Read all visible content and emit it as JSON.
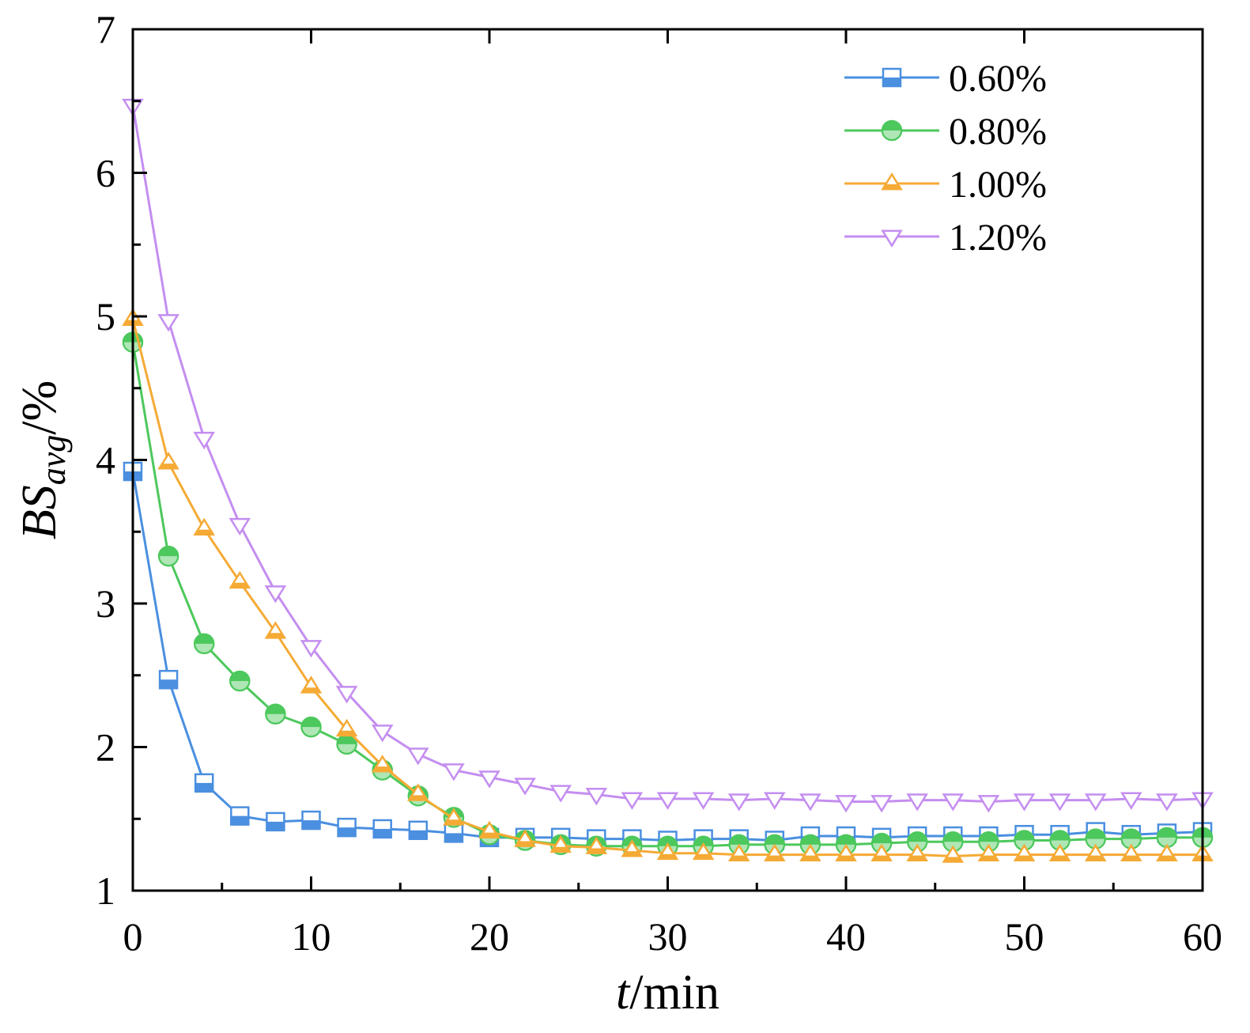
{
  "chart_data": {
    "type": "line",
    "title": "",
    "xlabel": {
      "italic": "t",
      "rest": "/min"
    },
    "ylabel": {
      "main": "BS",
      "sub": "avg",
      "rest": "/%"
    },
    "xlim": [
      0,
      60
    ],
    "ylim": [
      1,
      7
    ],
    "x_ticks": [
      0,
      10,
      20,
      30,
      40,
      50,
      60
    ],
    "y_ticks": [
      1,
      2,
      3,
      4,
      5,
      6,
      7
    ],
    "grid": false,
    "legend_position": "top-right",
    "x": [
      0,
      2,
      4,
      6,
      8,
      10,
      12,
      14,
      16,
      18,
      20,
      22,
      24,
      26,
      28,
      30,
      32,
      34,
      36,
      38,
      40,
      42,
      44,
      46,
      48,
      50,
      52,
      54,
      56,
      58,
      60
    ],
    "series": [
      {
        "name": "0.60%",
        "color": "#4a8fe0",
        "marker": "square",
        "values": [
          3.92,
          2.47,
          1.75,
          1.52,
          1.48,
          1.49,
          1.44,
          1.43,
          1.42,
          1.4,
          1.37,
          1.37,
          1.37,
          1.36,
          1.36,
          1.35,
          1.36,
          1.36,
          1.35,
          1.38,
          1.38,
          1.37,
          1.38,
          1.38,
          1.38,
          1.39,
          1.39,
          1.41,
          1.39,
          1.4,
          1.41
        ]
      },
      {
        "name": "0.80%",
        "color": "#4cc85c",
        "marker": "circle",
        "values": [
          4.82,
          3.33,
          2.72,
          2.46,
          2.23,
          2.14,
          2.02,
          1.84,
          1.66,
          1.51,
          1.39,
          1.35,
          1.32,
          1.31,
          1.31,
          1.31,
          1.31,
          1.32,
          1.32,
          1.32,
          1.32,
          1.33,
          1.34,
          1.34,
          1.34,
          1.35,
          1.35,
          1.36,
          1.36,
          1.37,
          1.37
        ]
      },
      {
        "name": "1.00%",
        "color": "#f5aa35",
        "marker": "triangle-up",
        "values": [
          4.98,
          3.98,
          3.52,
          3.15,
          2.8,
          2.42,
          2.12,
          1.87,
          1.67,
          1.5,
          1.41,
          1.35,
          1.31,
          1.3,
          1.28,
          1.26,
          1.26,
          1.25,
          1.25,
          1.25,
          1.25,
          1.25,
          1.25,
          1.24,
          1.25,
          1.25,
          1.25,
          1.25,
          1.25,
          1.25,
          1.25
        ]
      },
      {
        "name": "1.20%",
        "color": "#c48ef0",
        "marker": "triangle-down",
        "values": [
          6.47,
          4.97,
          4.15,
          3.55,
          3.08,
          2.7,
          2.38,
          2.11,
          1.95,
          1.84,
          1.79,
          1.74,
          1.69,
          1.67,
          1.64,
          1.64,
          1.64,
          1.63,
          1.64,
          1.63,
          1.62,
          1.62,
          1.63,
          1.63,
          1.62,
          1.63,
          1.63,
          1.63,
          1.64,
          1.63,
          1.64
        ]
      }
    ]
  }
}
